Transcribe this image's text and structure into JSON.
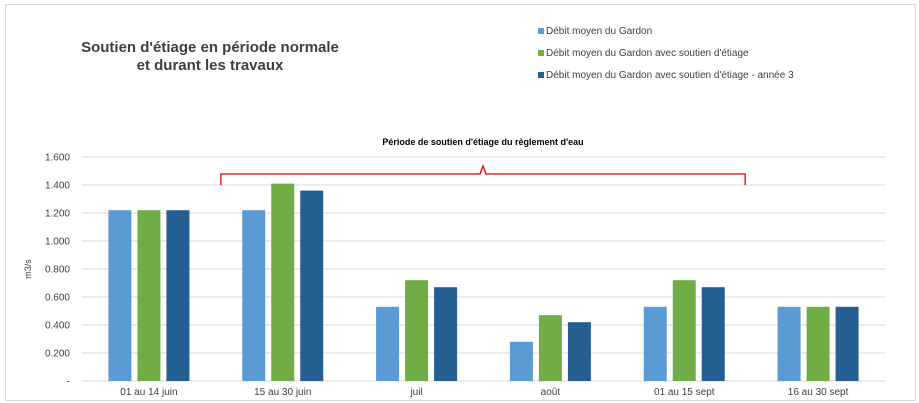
{
  "chart_data": {
    "type": "bar",
    "title_line1": "Soutien d'étiage en période normale",
    "title_line2": "et durant les travaux",
    "xlabel": "",
    "ylabel": "m3/s",
    "ylim": [
      0,
      1.6
    ],
    "yticks": [
      {
        "value": 0,
        "label": "-"
      },
      {
        "value": 0.2,
        "label": "0.200"
      },
      {
        "value": 0.4,
        "label": "0.400"
      },
      {
        "value": 0.6,
        "label": "0.600"
      },
      {
        "value": 0.8,
        "label": "0.800"
      },
      {
        "value": 1.0,
        "label": "1.000"
      },
      {
        "value": 1.2,
        "label": "1.200"
      },
      {
        "value": 1.4,
        "label": "1.400"
      },
      {
        "value": 1.6,
        "label": "1.600"
      }
    ],
    "grid": true,
    "legend_position": "top-right",
    "categories": [
      "01 au 14 juin",
      "15 au  30 juin",
      "juil",
      "août",
      "01 au 15 sept",
      "16 au  30 sept"
    ],
    "series": [
      {
        "name": "Débit moyen du Gardon",
        "color": "#5b9bd5",
        "values": [
          1.22,
          1.22,
          0.53,
          0.28,
          0.53,
          0.53
        ]
      },
      {
        "name": "Débit moyen du Gardon avec soutien d'étiage",
        "color": "#70ad47",
        "values": [
          1.22,
          1.41,
          0.72,
          0.47,
          0.72,
          0.53
        ]
      },
      {
        "name": "Débit moyen du Gardon avec soutien d'étiage  - année 3",
        "color": "#255e91",
        "values": [
          1.22,
          1.36,
          0.67,
          0.42,
          0.67,
          0.53
        ]
      }
    ],
    "annotation": {
      "text": "Période de soutien d'étiage du règlement d'eau",
      "color": "#e00000",
      "from_category": 1,
      "to_category": 4
    }
  }
}
